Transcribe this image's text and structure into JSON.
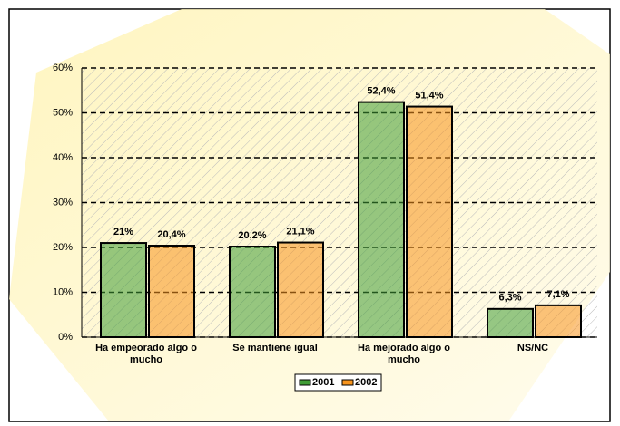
{
  "chart_data": {
    "type": "bar",
    "categories": [
      "Ha empeorado algo o mucho",
      "Se mantiene igual",
      "Ha mejorado algo o mucho",
      "NS/NC"
    ],
    "series": [
      {
        "name": "2001",
        "color": "#3f9c35",
        "values": [
          21,
          20.2,
          52.4,
          6.3
        ],
        "value_labels": [
          "21%",
          "20,2%",
          "52,4%",
          "6,3%"
        ]
      },
      {
        "name": "2002",
        "color": "#f7941d",
        "values": [
          20.4,
          21.1,
          51.4,
          7.1
        ],
        "value_labels": [
          "20,4%",
          "21,1%",
          "51,4%",
          "7,1%"
        ]
      }
    ],
    "ylim": [
      0,
      60
    ],
    "yticks": [
      {
        "value": 0,
        "label": "0%"
      },
      {
        "value": 10,
        "label": "10%"
      },
      {
        "value": 20,
        "label": "20%"
      },
      {
        "value": 30,
        "label": "30%"
      },
      {
        "value": 40,
        "label": "40%"
      },
      {
        "value": 50,
        "label": "50%"
      },
      {
        "value": 60,
        "label": "60%"
      }
    ],
    "grid": true,
    "legend": "bottom"
  }
}
